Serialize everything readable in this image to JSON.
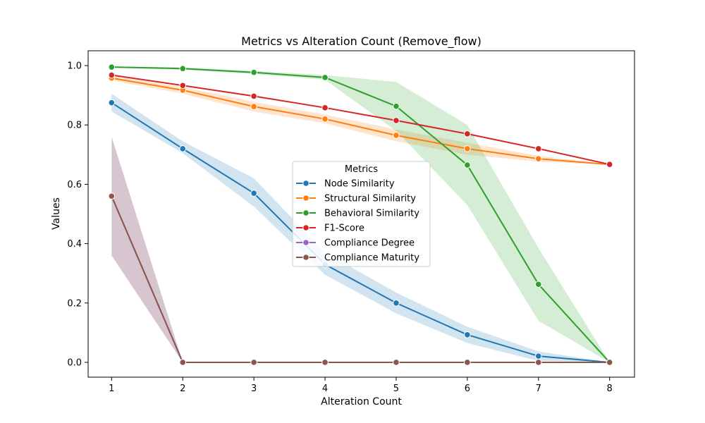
{
  "chart_data": {
    "type": "line",
    "title": "Metrics vs Alteration Count (Remove_flow)",
    "xlabel": "Alteration Count",
    "ylabel": "Values",
    "x": [
      1,
      2,
      3,
      4,
      5,
      6,
      7,
      8
    ],
    "xlim": [
      0.67,
      8.35
    ],
    "ylim": [
      -0.05,
      1.05
    ],
    "x_ticks": [
      "1",
      "2",
      "3",
      "4",
      "5",
      "6",
      "7",
      "8"
    ],
    "y_ticks": [
      "0.0",
      "0.2",
      "0.4",
      "0.6",
      "0.8",
      "1.0"
    ],
    "grid": false,
    "legend": {
      "title": "Metrics",
      "placement": "center"
    },
    "series": [
      {
        "name": "Node Similarity",
        "color": "#1f77b4",
        "values": [
          0.875,
          0.72,
          0.57,
          0.33,
          0.2,
          0.093,
          0.021,
          0.0
        ],
        "ci_lower": [
          0.845,
          0.705,
          0.525,
          0.295,
          0.165,
          0.065,
          0.005,
          0.0
        ],
        "ci_upper": [
          0.905,
          0.745,
          0.62,
          0.37,
          0.235,
          0.12,
          0.037,
          0.0
        ]
      },
      {
        "name": "Structural Similarity",
        "color": "#ff7f0e",
        "values": [
          0.958,
          0.917,
          0.862,
          0.82,
          0.765,
          0.72,
          0.686,
          0.667
        ],
        "ci_lower": [
          0.95,
          0.905,
          0.845,
          0.805,
          0.745,
          0.7,
          0.676,
          0.667
        ],
        "ci_upper": [
          0.965,
          0.928,
          0.878,
          0.835,
          0.785,
          0.74,
          0.696,
          0.667
        ]
      },
      {
        "name": "Behavioral Similarity",
        "color": "#2ca02c",
        "values": [
          0.995,
          0.99,
          0.977,
          0.96,
          0.863,
          0.665,
          0.263,
          0.0
        ],
        "ci_lower": [
          0.993,
          0.986,
          0.972,
          0.952,
          0.78,
          0.53,
          0.14,
          0.0
        ],
        "ci_upper": [
          0.997,
          0.994,
          0.982,
          0.968,
          0.945,
          0.8,
          0.385,
          0.0
        ]
      },
      {
        "name": "F1-Score",
        "color": "#d62728",
        "values": [
          0.968,
          0.933,
          0.897,
          0.858,
          0.815,
          0.77,
          0.72,
          0.667
        ],
        "ci_lower": [
          0.966,
          0.931,
          0.895,
          0.856,
          0.813,
          0.768,
          0.718,
          0.667
        ],
        "ci_upper": [
          0.97,
          0.935,
          0.899,
          0.86,
          0.817,
          0.772,
          0.722,
          0.667
        ]
      },
      {
        "name": "Compliance Degree",
        "color": "#9467bd",
        "values": [
          0.56,
          0.0,
          0.0,
          0.0,
          0.0,
          0.0,
          0.0,
          0.0
        ],
        "ci_lower": [
          0.36,
          0.0,
          0.0,
          0.0,
          0.0,
          0.0,
          0.0,
          0.0
        ],
        "ci_upper": [
          0.76,
          0.0,
          0.0,
          0.0,
          0.0,
          0.0,
          0.0,
          0.0
        ]
      },
      {
        "name": "Compliance Maturity",
        "color": "#8c564b",
        "values": [
          0.56,
          0.0,
          0.0,
          0.0,
          0.0,
          0.0,
          0.0,
          0.0
        ],
        "ci_lower": [
          0.36,
          0.0,
          0.0,
          0.0,
          0.0,
          0.0,
          0.0,
          0.0
        ],
        "ci_upper": [
          0.76,
          0.0,
          0.0,
          0.0,
          0.0,
          0.0,
          0.0,
          0.0
        ]
      }
    ]
  }
}
